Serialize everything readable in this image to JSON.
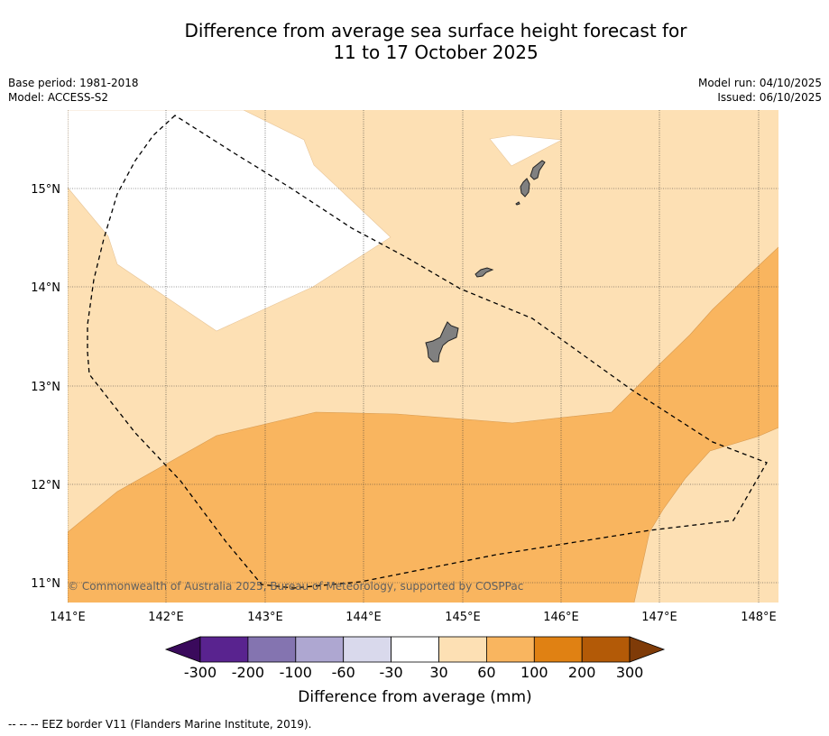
{
  "title": {
    "line1": "Difference from average sea surface height forecast for",
    "line2": "11 to 17 October 2025"
  },
  "meta_left": {
    "base_period": "Base period: 1981-2018",
    "model": "Model: ACCESS-S2"
  },
  "meta_right": {
    "model_run": "Model run: 04/10/2025",
    "issued": "Issued: 06/10/2025"
  },
  "map": {
    "lon_labels": [
      "141°E",
      "142°E",
      "143°E",
      "144°E",
      "145°E",
      "146°E",
      "147°E",
      "148°E"
    ],
    "lat_labels": [
      "15°N",
      "14°N",
      "13°N",
      "12°N",
      "11°N"
    ],
    "copyright": "© Commonwealth of Australia 2025, Bureau of Meteorology, supported by COSPPac",
    "land_color": "#808080",
    "eez_line": "dashed black",
    "zones": [
      "30 to 60 mm (light tan)",
      "60 to 100 mm (orange)",
      "-30 to 30 mm (white)"
    ]
  },
  "colorbar": {
    "colors": [
      "#3a0a5c",
      "#59238f",
      "#8474b0",
      "#aea7d1",
      "#d9d9ec",
      "#ffffff",
      "#fde0b4",
      "#f9b55f",
      "#e08113",
      "#b35a07",
      "#7f3b08"
    ],
    "tick_labels": [
      "-300",
      "-200",
      "-100",
      "-60",
      "-30",
      "30",
      "60",
      "100",
      "200",
      "300"
    ],
    "label": "Difference from average (mm)"
  },
  "footer": "--  --  -- EEZ border V11 (Flanders Marine Institute, 2019)."
}
